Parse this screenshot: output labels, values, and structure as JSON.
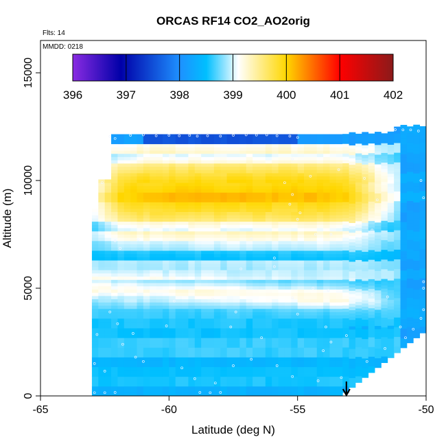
{
  "chart_data": {
    "type": "heatmap",
    "title": "ORCAS RF14 CO2_AO2orig",
    "flights_note": "Flts: 14",
    "date_note": "MMDD: 0218",
    "xlabel": "Latitude (deg N)",
    "ylabel": "Altitude (m)",
    "xlim": [
      -65,
      -50
    ],
    "ylim": [
      0,
      16500
    ],
    "x_ticks": [
      -65,
      -60,
      -55,
      -50
    ],
    "x_tick_labels": [
      "-65",
      "-60",
      "-55",
      "-50"
    ],
    "y_ticks": [
      0,
      5000,
      10000,
      15000
    ],
    "y_tick_labels": [
      "0",
      "5000",
      "10000",
      "15000"
    ],
    "colorbar": {
      "range": [
        396,
        402
      ],
      "ticks": [
        396,
        397,
        398,
        399,
        400,
        401,
        402
      ],
      "tick_labels": [
        "396",
        "397",
        "398",
        "399",
        "400",
        "401",
        "402"
      ],
      "colors": [
        "#8a2be2",
        "#0000a8",
        "#1e90ff",
        "#00bfff",
        "#ffffff",
        "#ffd700",
        "#ff0000",
        "#8b1a1a"
      ],
      "color_positions": [
        396,
        396.9,
        398,
        398.5,
        399.1,
        400,
        401,
        402
      ]
    },
    "marker": {
      "x": -53.1,
      "y": 0,
      "symbol": "down-arrow"
    },
    "observed_points": [
      [
        -62.3,
        12050
      ],
      [
        -62.1,
        11950
      ],
      [
        -61.5,
        12100
      ],
      [
        -61.0,
        12120
      ],
      [
        -60.5,
        12080
      ],
      [
        -60.0,
        12100
      ],
      [
        -59.6,
        12080
      ],
      [
        -59.2,
        12100
      ],
      [
        -58.9,
        12060
      ],
      [
        -58.5,
        12080
      ],
      [
        -58.0,
        12060
      ],
      [
        -57.5,
        12100
      ],
      [
        -57.0,
        12120
      ],
      [
        -56.6,
        12110
      ],
      [
        -56.2,
        12120
      ],
      [
        -55.8,
        12080
      ],
      [
        -55.3,
        12060
      ],
      [
        -55.0,
        12000
      ],
      [
        -62.6,
        9900
      ],
      [
        -62.8,
        8300
      ],
      [
        -62.1,
        7200
      ],
      [
        -61.2,
        7250
      ],
      [
        -61.9,
        6850
      ],
      [
        -55.2,
        11000
      ],
      [
        -54.5,
        10200
      ],
      [
        -55.5,
        9900
      ],
      [
        -55.2,
        9350
      ],
      [
        -54.9,
        8500
      ],
      [
        -55.0,
        8200
      ],
      [
        -55.3,
        8900
      ],
      [
        -53.4,
        10500
      ],
      [
        -52.4,
        10100
      ],
      [
        -51.9,
        9100
      ],
      [
        -54.3,
        7500
      ],
      [
        -53.7,
        7500
      ],
      [
        -52.6,
        7300
      ],
      [
        -52.1,
        7700
      ],
      [
        -56.8,
        7300
      ],
      [
        -55.9,
        6400
      ],
      [
        -57.2,
        5900
      ],
      [
        -55.9,
        6000
      ],
      [
        -54.4,
        5000
      ],
      [
        -53.8,
        4900
      ],
      [
        -52.1,
        4700
      ],
      [
        -51.5,
        4600
      ],
      [
        -55.2,
        4550
      ],
      [
        -55.0,
        3800
      ],
      [
        -53.9,
        3200
      ],
      [
        -53.1,
        2800
      ],
      [
        -62.0,
        3350
      ],
      [
        -62.3,
        3900
      ],
      [
        -61.8,
        2400
      ],
      [
        -61.4,
        2900
      ],
      [
        -60.1,
        3250
      ],
      [
        -59.8,
        4400
      ],
      [
        -58.3,
        4500
      ],
      [
        -57.4,
        3900
      ],
      [
        -57.6,
        3200
      ],
      [
        -56.4,
        2700
      ],
      [
        -54.0,
        2100
      ],
      [
        -53.7,
        2500
      ],
      [
        -51.0,
        3200
      ],
      [
        -50.5,
        3100
      ],
      [
        -62.8,
        2850
      ],
      [
        -62.9,
        1500
      ],
      [
        -62.5,
        1150
      ],
      [
        -61.3,
        1800
      ],
      [
        -61.0,
        1600
      ],
      [
        -59.5,
        1300
      ],
      [
        -59.0,
        800
      ],
      [
        -58.2,
        600
      ],
      [
        -57.5,
        1400
      ],
      [
        -56.8,
        1700
      ],
      [
        -55.8,
        1400
      ],
      [
        -55.2,
        900
      ],
      [
        -54.2,
        700
      ],
      [
        -53.3,
        850
      ],
      [
        -52.3,
        1600
      ],
      [
        -51.6,
        2200
      ],
      [
        -50.8,
        2700
      ],
      [
        -62.9,
        150
      ],
      [
        -62.5,
        150
      ],
      [
        -62.1,
        160
      ],
      [
        -58.8,
        160
      ],
      [
        -58.4,
        150
      ],
      [
        -58.0,
        160
      ],
      [
        -50.2,
        10000
      ],
      [
        -50.1,
        9200
      ],
      [
        -50.3,
        12300
      ],
      [
        -50.6,
        12350
      ],
      [
        -50.9,
        12350
      ],
      [
        -51.2,
        12360
      ],
      [
        -50.1,
        5300
      ],
      [
        -50.1,
        5000
      ],
      [
        -50.1,
        4000
      ],
      [
        -50.2,
        3600
      ]
    ]
  }
}
